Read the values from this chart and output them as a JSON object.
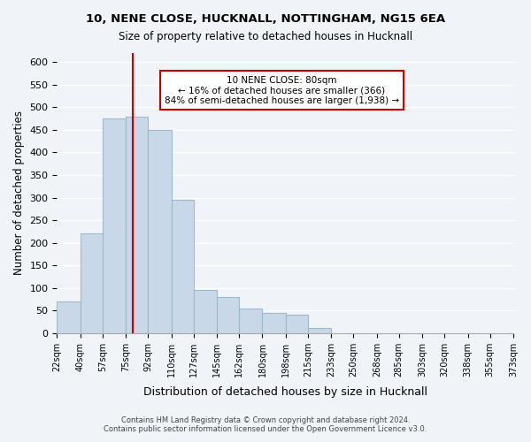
{
  "title1": "10, NENE CLOSE, HUCKNALL, NOTTINGHAM, NG15 6EA",
  "title2": "Size of property relative to detached houses in Hucknall",
  "xlabel": "Distribution of detached houses by size in Hucknall",
  "ylabel": "Number of detached properties",
  "bar_color": "#c8d8e8",
  "bar_edge_color": "#a0b8cc",
  "bins": [
    22,
    40,
    57,
    75,
    92,
    110,
    127,
    145,
    162,
    180,
    198,
    215,
    233,
    250,
    268,
    285,
    303,
    320,
    338,
    355,
    373
  ],
  "values": [
    70,
    220,
    475,
    480,
    450,
    295,
    95,
    80,
    55,
    45,
    40,
    12,
    0,
    0,
    0,
    0,
    0,
    0,
    0,
    0
  ],
  "tick_labels": [
    "22sqm",
    "40sqm",
    "57sqm",
    "75sqm",
    "92sqm",
    "110sqm",
    "127sqm",
    "145sqm",
    "162sqm",
    "180sqm",
    "198sqm",
    "215sqm",
    "233sqm",
    "250sqm",
    "268sqm",
    "285sqm",
    "303sqm",
    "320sqm",
    "338sqm",
    "355sqm",
    "373sqm"
  ],
  "ylim": [
    0,
    620
  ],
  "yticks": [
    0,
    50,
    100,
    150,
    200,
    250,
    300,
    350,
    400,
    450,
    500,
    550,
    600
  ],
  "vline_x": 80,
  "vline_color": "#cc0000",
  "annotation_title": "10 NENE CLOSE: 80sqm",
  "annotation_line1": "← 16% of detached houses are smaller (366)",
  "annotation_line2": "84% of semi-detached houses are larger (1,938) →",
  "annotation_box_color": "#ffffff",
  "annotation_box_edge": "#cc0000",
  "footer1": "Contains HM Land Registry data © Crown copyright and database right 2024.",
  "footer2": "Contains public sector information licensed under the Open Government Licence v3.0.",
  "background_color": "#f0f4f8",
  "grid_color": "#ffffff"
}
